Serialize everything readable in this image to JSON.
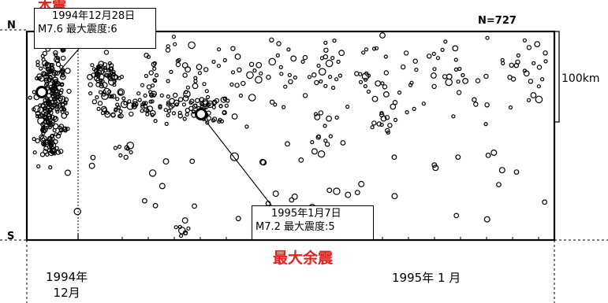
{
  "chart_data": {
    "type": "scatter",
    "n_label": "N=727",
    "axis": {
      "north": "N",
      "south": "S",
      "scale_bar_label": "100km",
      "x_ticks": [
        {
          "label_lines": [
            "1994年",
            "12月"
          ],
          "date": "1994-12-01"
        },
        {
          "label_lines": [
            "1995年 1 月"
          ],
          "date": "1995-01-01"
        }
      ],
      "xlim": [
        "1994-11-25",
        "1995-01-26"
      ]
    },
    "annotations": {
      "mainshock": {
        "title": "本震",
        "date_text": "1994年12月28日",
        "mag_text": "M7.6 最大震度:6",
        "date": "1994-12-28"
      },
      "largest_aftershock": {
        "title": "最大余震",
        "date_text": "1995年1月7日",
        "mag_text": "M7.2 最大震度:5",
        "date": "1995-01-07"
      }
    },
    "colors": {
      "title": "#e3231b",
      "marks": "#000000",
      "background": "#ffffff"
    }
  }
}
